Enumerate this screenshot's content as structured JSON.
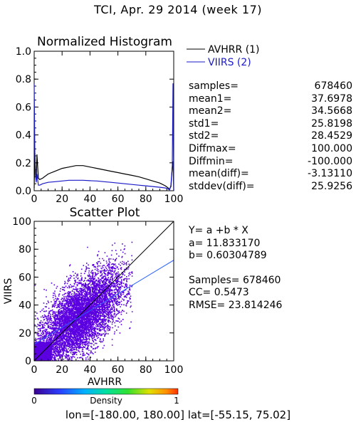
{
  "header": {
    "title": "TCI, Apr. 29 2014 (week 17)"
  },
  "chart_data": [
    {
      "type": "line",
      "title": "Normalized Histogram",
      "xlabel": "",
      "ylabel": "",
      "xlim": [
        0,
        100
      ],
      "ylim": [
        0,
        1.0
      ],
      "x_ticks": [
        "0",
        "20",
        "40",
        "60",
        "80",
        "100"
      ],
      "y_ticks": [
        "0.0",
        "0.2",
        "0.4",
        "0.6",
        "0.8",
        "1.0"
      ],
      "legend": [
        "AVHRR (1)",
        "VIIRS (2)"
      ],
      "legend_position": "right",
      "colors": {
        "AVHRR (1)": "#000000",
        "VIIRS (2)": "#1a1ac8"
      },
      "x": [
        0,
        0.5,
        1,
        1.5,
        2,
        3,
        4,
        6,
        10,
        15,
        20,
        25,
        30,
        35,
        40,
        45,
        50,
        55,
        60,
        65,
        70,
        75,
        80,
        85,
        90,
        94,
        96,
        97,
        98,
        99,
        99.5,
        100
      ],
      "series": [
        {
          "name": "AVHRR (1)",
          "values": [
            0.02,
            0.27,
            0.11,
            0.08,
            0.26,
            0.09,
            0.08,
            0.09,
            0.12,
            0.14,
            0.16,
            0.17,
            0.18,
            0.18,
            0.17,
            0.16,
            0.15,
            0.14,
            0.13,
            0.12,
            0.11,
            0.1,
            0.085,
            0.07,
            0.055,
            0.035,
            0.02,
            0.01,
            0.03,
            0.17,
            0.21,
            0.0
          ]
        },
        {
          "name": "VIIRS (2)",
          "values": [
            0.77,
            0.25,
            0.1,
            0.06,
            0.12,
            0.04,
            0.04,
            0.05,
            0.06,
            0.065,
            0.07,
            0.075,
            0.075,
            0.075,
            0.072,
            0.07,
            0.065,
            0.06,
            0.055,
            0.05,
            0.045,
            0.04,
            0.035,
            0.03,
            0.025,
            0.02,
            0.012,
            0.006,
            0.04,
            0.18,
            0.77,
            0.0
          ]
        }
      ]
    },
    {
      "type": "scatter",
      "title": "Scatter Plot",
      "xlabel": "AVHRR",
      "ylabel": "VIIRS",
      "xlim": [
        0,
        100
      ],
      "ylim": [
        0,
        100
      ],
      "x_ticks": [
        "0",
        "20",
        "40",
        "60",
        "80",
        "100"
      ],
      "y_ticks": [
        "0",
        "20",
        "40",
        "60",
        "80",
        "100"
      ],
      "fit_line": {
        "a": 11.83317,
        "b": 0.60304789
      },
      "reference_line": "1:1",
      "point_cloud": {
        "x_center": 32,
        "y_center": 31,
        "x_range": [
          0,
          70
        ],
        "y_range": [
          0,
          86
        ],
        "color": "#5b00e0"
      },
      "colorbar": {
        "label": "Density",
        "min_label": "0",
        "max_label": "1"
      }
    }
  ],
  "stats": [
    {
      "label": "samples=",
      "value": "678460"
    },
    {
      "label": "mean1=",
      "value": "37.6978"
    },
    {
      "label": "mean2=",
      "value": "34.5668"
    },
    {
      "label": "std1=",
      "value": "25.8198"
    },
    {
      "label": "std2=",
      "value": "28.4529"
    },
    {
      "label": "Diffmax=",
      "value": "100.000"
    },
    {
      "label": "Diffmin=",
      "value": "-100.000"
    },
    {
      "label": "mean(diff)=",
      "value": "-3.13110"
    },
    {
      "label": "stddev(diff)=",
      "value": "25.9256"
    }
  ],
  "scatter_info": {
    "equation": "Y= a +b * X",
    "a_line": "a= 11.833170",
    "b_line": "b= 0.60304789",
    "samples_line": "Samples= 678460",
    "cc_line": "CC= 0.5473",
    "rmse_line": "RMSE= 23.814246"
  },
  "footer": {
    "text": "lon=[-180.00, 180.00] lat=[-55.15, 75.02]"
  }
}
